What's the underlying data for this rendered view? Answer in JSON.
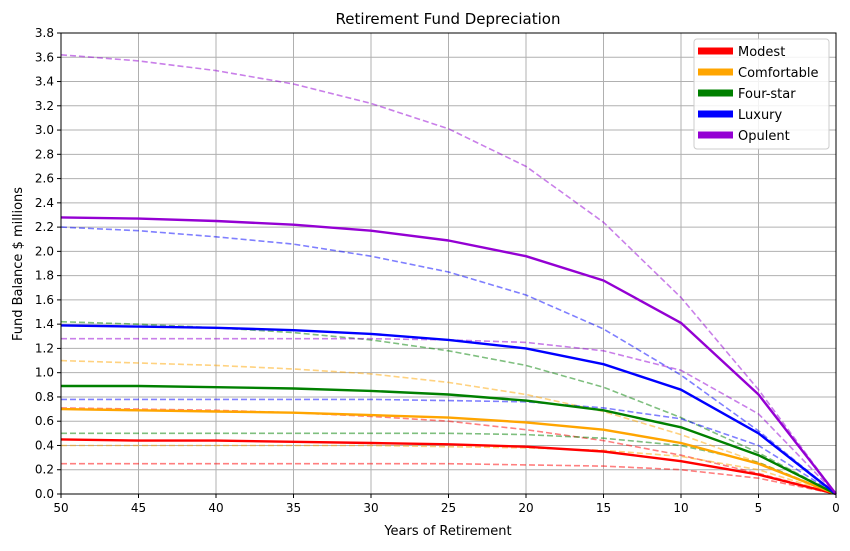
{
  "chart_data": {
    "type": "line",
    "title": "Retirement Fund Depreciation",
    "xlabel": "Years of Retirement",
    "ylabel": "Fund Balance $ millions",
    "xlim": [
      50,
      0
    ],
    "ylim": [
      0,
      3.8
    ],
    "x_ticks": [
      "50",
      "45",
      "40",
      "35",
      "30",
      "25",
      "20",
      "15",
      "10",
      "5",
      "0"
    ],
    "y_ticks": [
      "0.0",
      "0.2",
      "0.4",
      "0.6",
      "0.8",
      "1.0",
      "1.2",
      "1.4",
      "1.6",
      "1.8",
      "2.0",
      "2.2",
      "2.4",
      "2.6",
      "2.8",
      "3.0",
      "3.2",
      "3.4",
      "3.6",
      "3.8"
    ],
    "grid": true,
    "legend_position": "top-right",
    "x": [
      50,
      45,
      40,
      35,
      30,
      25,
      20,
      15,
      10,
      5,
      0
    ],
    "series": [
      {
        "name": "Modest",
        "color": "#ff0000",
        "style": "solid",
        "values": [
          0.45,
          0.44,
          0.44,
          0.43,
          0.42,
          0.41,
          0.39,
          0.35,
          0.27,
          0.16,
          0.0
        ]
      },
      {
        "name": "Comfortable",
        "color": "#ffa500",
        "style": "solid",
        "values": [
          0.7,
          0.69,
          0.68,
          0.67,
          0.65,
          0.63,
          0.59,
          0.53,
          0.42,
          0.25,
          0.0
        ]
      },
      {
        "name": "Four-star",
        "color": "#008000",
        "style": "solid",
        "values": [
          0.89,
          0.89,
          0.88,
          0.87,
          0.85,
          0.82,
          0.77,
          0.69,
          0.55,
          0.32,
          0.0
        ]
      },
      {
        "name": "Luxury",
        "color": "#0000ff",
        "style": "solid",
        "values": [
          1.39,
          1.38,
          1.37,
          1.35,
          1.32,
          1.27,
          1.2,
          1.07,
          0.86,
          0.5,
          0.0
        ]
      },
      {
        "name": "Opulent",
        "color": "#9400d3",
        "style": "solid",
        "values": [
          2.28,
          2.27,
          2.25,
          2.22,
          2.17,
          2.09,
          1.96,
          1.76,
          1.41,
          0.82,
          0.0
        ]
      },
      {
        "color": "#ff0000",
        "style": "dashed",
        "values": [
          0.25,
          0.25,
          0.25,
          0.25,
          0.25,
          0.25,
          0.24,
          0.23,
          0.2,
          0.13,
          0.0
        ]
      },
      {
        "color": "#ff0000",
        "style": "dashed",
        "values": [
          0.71,
          0.7,
          0.69,
          0.67,
          0.64,
          0.6,
          0.53,
          0.44,
          0.32,
          0.17,
          0.0
        ]
      },
      {
        "color": "#ffa500",
        "style": "dashed",
        "values": [
          0.4,
          0.4,
          0.4,
          0.4,
          0.4,
          0.39,
          0.38,
          0.36,
          0.31,
          0.2,
          0.0
        ]
      },
      {
        "color": "#ffa500",
        "style": "dashed",
        "values": [
          1.1,
          1.08,
          1.06,
          1.03,
          0.99,
          0.92,
          0.82,
          0.68,
          0.49,
          0.26,
          0.0
        ]
      },
      {
        "color": "#008000",
        "style": "dashed",
        "values": [
          0.5,
          0.5,
          0.5,
          0.5,
          0.5,
          0.5,
          0.49,
          0.46,
          0.4,
          0.26,
          0.0
        ]
      },
      {
        "color": "#008000",
        "style": "dashed",
        "values": [
          1.42,
          1.4,
          1.37,
          1.33,
          1.27,
          1.18,
          1.06,
          0.88,
          0.63,
          0.34,
          0.0
        ]
      },
      {
        "color": "#0000ff",
        "style": "dashed",
        "values": [
          0.78,
          0.78,
          0.78,
          0.78,
          0.78,
          0.77,
          0.76,
          0.71,
          0.62,
          0.4,
          0.0
        ]
      },
      {
        "color": "#0000ff",
        "style": "dashed",
        "values": [
          2.2,
          2.17,
          2.12,
          2.06,
          1.96,
          1.83,
          1.64,
          1.36,
          0.98,
          0.52,
          0.0
        ]
      },
      {
        "color": "#9400d3",
        "style": "dashed",
        "values": [
          1.28,
          1.28,
          1.28,
          1.28,
          1.28,
          1.27,
          1.25,
          1.18,
          1.02,
          0.66,
          0.0
        ]
      },
      {
        "color": "#9400d3",
        "style": "dashed",
        "values": [
          3.62,
          3.57,
          3.49,
          3.38,
          3.22,
          3.01,
          2.7,
          2.24,
          1.62,
          0.86,
          0.0
        ]
      }
    ]
  }
}
